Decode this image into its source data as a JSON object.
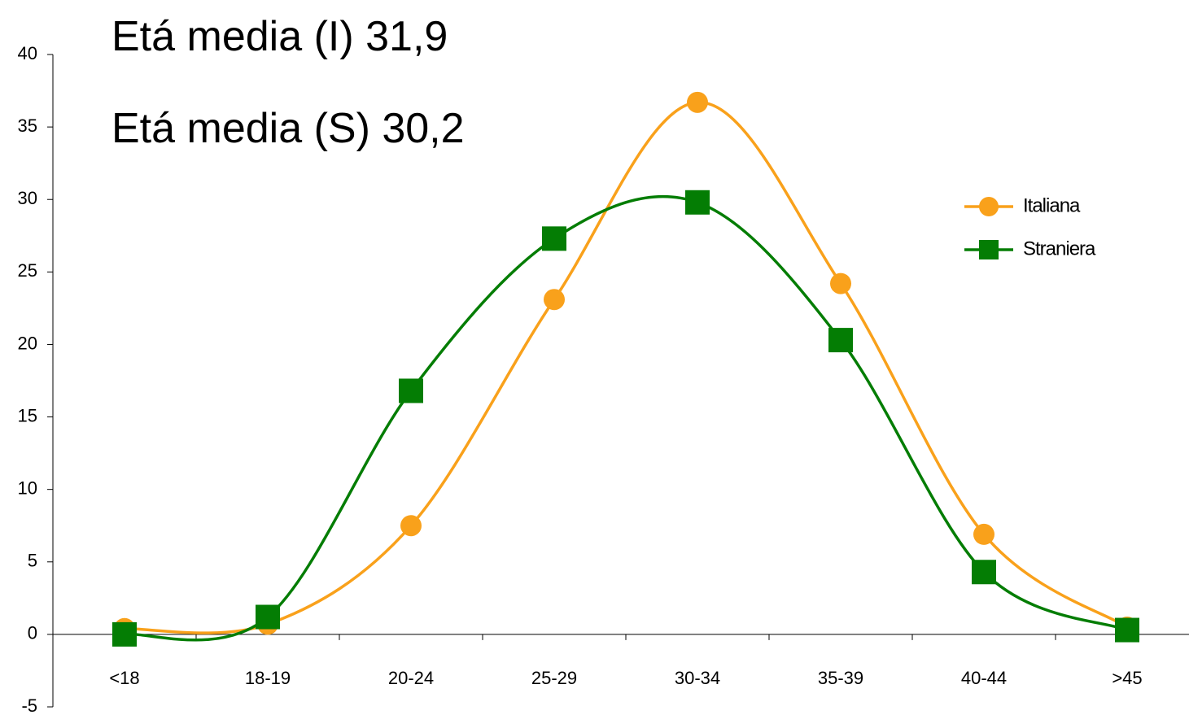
{
  "chart_data": {
    "type": "line",
    "smooth": true,
    "annotations": [
      {
        "text": "Etá media (I)  31,9",
        "color": "#f26b21"
      },
      {
        "text": "Etá media (S) 30,2",
        "color": "#3a9a3a"
      }
    ],
    "categories": [
      "<18",
      "18-19",
      "20-24",
      "25-29",
      "30-34",
      "35-39",
      "40-44",
      ">45"
    ],
    "series": [
      {
        "name": "Italiana",
        "color": "#f9a11b",
        "marker": "circle",
        "values": [
          0.4,
          0.7,
          7.5,
          23.1,
          36.7,
          24.2,
          6.9,
          0.5
        ]
      },
      {
        "name": "Straniera",
        "color": "#047d04",
        "marker": "square",
        "values": [
          0,
          1.2,
          16.8,
          27.3,
          29.8,
          20.3,
          4.3,
          0.3
        ]
      }
    ],
    "ylim": [
      -5,
      40
    ],
    "yticks": [
      -5,
      0,
      5,
      10,
      15,
      20,
      25,
      30,
      35,
      40
    ],
    "grid": false,
    "legend": "right"
  }
}
